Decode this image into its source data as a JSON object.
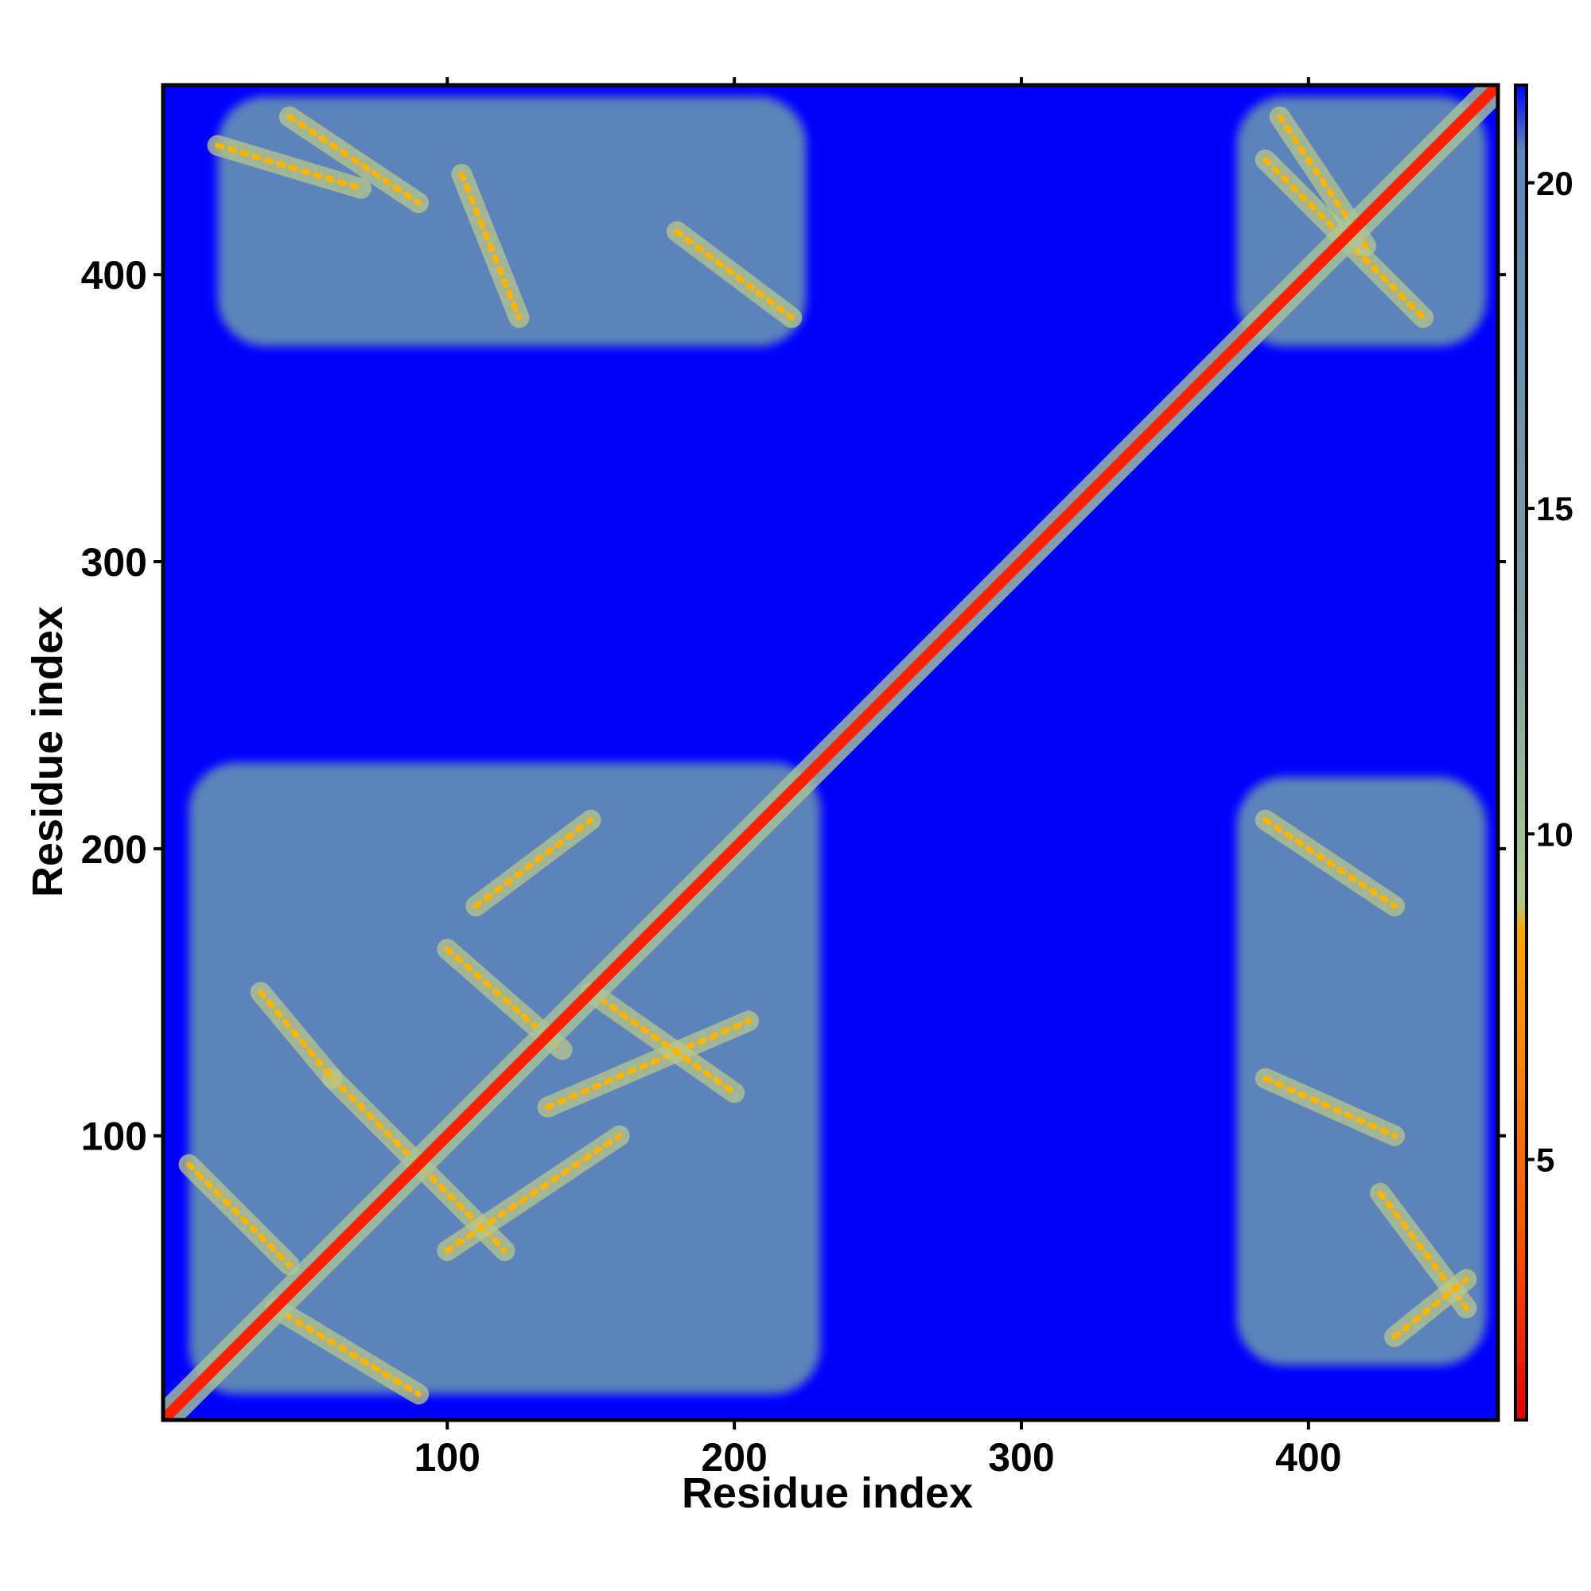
{
  "chart_data": {
    "type": "heatmap",
    "title": "",
    "xlabel": "Residue index",
    "ylabel": "Residue index",
    "xlim": [
      1,
      466
    ],
    "ylim": [
      1,
      466
    ],
    "x_ticks": [
      "100",
      "200",
      "300",
      "400"
    ],
    "y_ticks": [
      "100",
      "200",
      "300",
      "400"
    ],
    "colorbar": {
      "range": [
        1,
        21.5
      ],
      "ticks": [
        "5",
        "10",
        "15",
        "20"
      ],
      "tick_values": [
        5,
        10,
        15,
        20
      ],
      "stops": [
        {
          "value": 1,
          "color": "#e60000"
        },
        {
          "value": 4,
          "color": "#ff5a00"
        },
        {
          "value": 8.5,
          "color": "#ffa500"
        },
        {
          "value": 9,
          "color": "#b0c890"
        },
        {
          "value": 13,
          "color": "#7f9ea0"
        },
        {
          "value": 20.5,
          "color": "#5e86b8"
        },
        {
          "value": 21.5,
          "color": "#0000ff"
        }
      ]
    },
    "background_color": "#0000ff",
    "diagonal_color": "#ff2000",
    "contact_color": "#5f88b8",
    "contact_regions": [
      {
        "x": [
          10,
          230
        ],
        "y": [
          10,
          230
        ]
      },
      {
        "x": [
          20,
          225
        ],
        "y": [
          375,
          462
        ]
      },
      {
        "x": [
          375,
          462
        ],
        "y": [
          20,
          225
        ]
      },
      {
        "x": [
          375,
          462
        ],
        "y": [
          375,
          462
        ]
      }
    ],
    "contact_lines": [
      {
        "x": [
          40,
          90
        ],
        "y": [
          40,
          10
        ]
      },
      {
        "x": [
          10,
          45
        ],
        "y": [
          90,
          55
        ]
      },
      {
        "x": [
          60,
          120
        ],
        "y": [
          120,
          60
        ]
      },
      {
        "x": [
          100,
          160
        ],
        "y": [
          60,
          100
        ]
      },
      {
        "x": [
          135,
          205
        ],
        "y": [
          110,
          140
        ]
      },
      {
        "x": [
          100,
          140
        ],
        "y": [
          165,
          130
        ]
      },
      {
        "x": [
          110,
          150
        ],
        "y": [
          180,
          210
        ]
      },
      {
        "x": [
          150,
          200
        ],
        "y": [
          150,
          115
        ]
      },
      {
        "x": [
          35,
          60
        ],
        "y": [
          150,
          120
        ]
      },
      {
        "x": [
          20,
          70
        ],
        "y": [
          445,
          430
        ]
      },
      {
        "x": [
          45,
          90
        ],
        "y": [
          455,
          425
        ]
      },
      {
        "x": [
          105,
          125
        ],
        "y": [
          435,
          385
        ]
      },
      {
        "x": [
          180,
          220
        ],
        "y": [
          415,
          385
        ]
      },
      {
        "x": [
          385,
          440
        ],
        "y": [
          440,
          385
        ]
      },
      {
        "x": [
          390,
          420
        ],
        "y": [
          455,
          410
        ]
      },
      {
        "x": [
          385,
          430
        ],
        "y": [
          210,
          180
        ]
      },
      {
        "x": [
          385,
          430
        ],
        "y": [
          120,
          100
        ]
      },
      {
        "x": [
          425,
          455
        ],
        "y": [
          80,
          40
        ]
      },
      {
        "x": [
          430,
          455
        ],
        "y": [
          30,
          50
        ]
      }
    ]
  }
}
